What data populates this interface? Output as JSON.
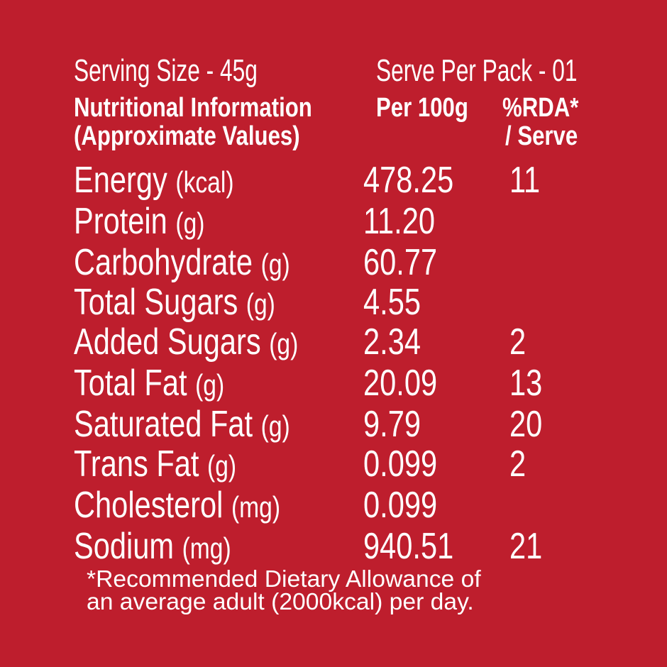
{
  "header": {
    "serving_size": "Serving Size - 45g",
    "serve_per_pack": "Serve Per Pack - 01",
    "title_line1": "Nutritional Information",
    "title_line2": "(Approximate Values)",
    "col_per100": "Per 100g",
    "col_rda_line1": "%RDA*",
    "col_rda_line2": "/ Serve"
  },
  "rows": [
    {
      "name": "Energy",
      "unit": "(kcal)",
      "per100": "478.25",
      "rda": "11"
    },
    {
      "name": "Protein",
      "unit": "(g)",
      "per100": "11.20",
      "rda": ""
    },
    {
      "name": "Carbohydrate",
      "unit": "(g)",
      "per100": "60.77",
      "rda": ""
    },
    {
      "name": "Total Sugars",
      "unit": "(g)",
      "per100": "4.55",
      "rda": ""
    },
    {
      "name": "Added Sugars",
      "unit": "(g)",
      "per100": "2.34",
      "rda": "2"
    },
    {
      "name": "Total Fat",
      "unit": "(g)",
      "per100": "20.09",
      "rda": "13"
    },
    {
      "name": "Saturated Fat",
      "unit": "(g)",
      "per100": "9.79",
      "rda": "20"
    },
    {
      "name": "Trans Fat",
      "unit": "(g)",
      "per100": "0.099",
      "rda": "2"
    },
    {
      "name": "Cholesterol",
      "unit": "(mg)",
      "per100": "0.099",
      "rda": ""
    },
    {
      "name": "Sodium",
      "unit": "(mg)",
      "per100": "940.51",
      "rda": "21"
    }
  ],
  "footnote": {
    "line1": "*Recommended Dietary Allowance of",
    "line2": "an average adult (2000kcal) per day."
  },
  "colors": {
    "background": "#BE1E2D",
    "text": "#FFFFFF"
  }
}
